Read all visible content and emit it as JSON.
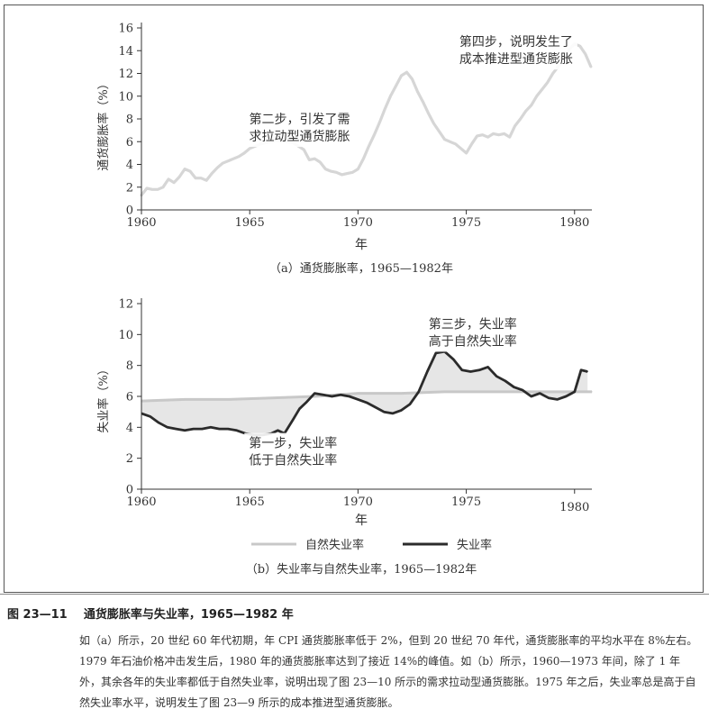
{
  "figure_label": "图 23—11",
  "figure_title": "通货膨胀率与失业率，1965—1982 年",
  "caption_text": "如（a）所示，20 世纪 60 年代初期，年 CPI 通货膨胀率低于 2%，但到 20 世纪 70 年代，通货膨胀率的平均水平在 8%左右。1979 年石油价格冲击发生后，1980 年的通货膨胀率达到了接近 14%的峰值。如（b）所示，1960—1973 年间，除了 1 年外，其余各年的失业率都低于自然失业率，说明出现了图 23—10 所示的需求拉动型通货膨胀。1975 年之后，失业率总是高于自然失业率水平，说明发生了图 23—9 所示的成本推进型通货膨胀。",
  "colors": {
    "inflation_line": "#d6d6d6",
    "unemployment_line": "#2b2b2b",
    "natural_line": "#c8c8c8",
    "fill": "#e6e6e6",
    "axis": "#333333"
  },
  "chart_data": [
    {
      "type": "line",
      "title": "",
      "subtitle": "（a）通货膨胀率，1965—1982年",
      "xlabel": "年",
      "ylabel": "通货膨胀率（%）",
      "xlim": [
        1960,
        1980.8
      ],
      "ylim": [
        0,
        16
      ],
      "xticks": [
        1960,
        1965,
        1970,
        1975,
        1980
      ],
      "yticks": [
        0,
        2,
        4,
        6,
        8,
        10,
        12,
        14,
        16
      ],
      "series": [
        {
          "name": "",
          "x": [
            1960,
            1960.25,
            1960.5,
            1960.75,
            1961,
            1961.25,
            1961.5,
            1961.75,
            1962,
            1962.25,
            1962.5,
            1962.75,
            1963,
            1963.25,
            1963.5,
            1963.75,
            1964,
            1964.25,
            1964.5,
            1964.75,
            1965,
            1965.25,
            1965.5,
            1965.75,
            1966,
            1966.25,
            1966.5,
            1966.75,
            1967,
            1967.25,
            1967.5,
            1967.75,
            1968,
            1968.25,
            1968.5,
            1968.75,
            1969,
            1969.25,
            1969.5,
            1969.75,
            1970,
            1970.25,
            1970.5,
            1970.75,
            1971,
            1971.25,
            1971.5,
            1971.75,
            1972,
            1972.25,
            1972.5,
            1972.75,
            1973,
            1973.25,
            1973.5,
            1973.75,
            1974,
            1974.25,
            1974.5,
            1974.75,
            1975,
            1975.25,
            1975.5,
            1975.75,
            1976,
            1976.25,
            1976.5,
            1976.75,
            1977,
            1977.25,
            1977.5,
            1977.75,
            1978,
            1978.25,
            1978.5,
            1978.75,
            1979,
            1979.25,
            1979.5,
            1979.75,
            1980,
            1980.25,
            1980.5,
            1980.75
          ],
          "values": [
            1.3,
            1.9,
            1.8,
            1.8,
            2.0,
            2.7,
            2.4,
            2.9,
            3.6,
            3.4,
            2.8,
            2.8,
            2.6,
            3.2,
            3.7,
            4.1,
            4.3,
            4.5,
            4.7,
            5.0,
            5.4,
            5.6,
            5.8,
            5.9,
            6.0,
            6.1,
            6.1,
            6.0,
            5.9,
            5.6,
            5.3,
            4.4,
            4.5,
            4.2,
            3.6,
            3.4,
            3.3,
            3.1,
            3.2,
            3.3,
            3.6,
            4.5,
            5.6,
            6.6,
            7.7,
            8.9,
            10.0,
            10.9,
            11.8,
            12.1,
            11.5,
            10.4,
            9.5,
            8.5,
            7.6,
            6.9,
            6.2,
            6.0,
            5.8,
            5.4,
            5.0,
            5.8,
            6.5,
            6.6,
            6.4,
            6.7,
            6.6,
            6.7,
            6.4,
            7.4,
            8.0,
            8.7,
            9.2,
            10.0,
            10.6,
            11.2,
            12.0,
            12.6,
            13.3,
            14.1,
            14.6,
            14.4,
            13.7,
            12.6
          ]
        }
      ],
      "annotations": [
        {
          "text": "第二步，引发了需求拉动型通货膨胀",
          "line1": "第二步，引发了需",
          "line2": "求拉动型通货膨胀",
          "x": 1967.3,
          "y": 7.6
        },
        {
          "text": "第四步，说明发生了成本推进型通货膨胀",
          "line1": "第四步，说明发生了",
          "line2": "成本推进型通货膨胀",
          "x": 1977.3,
          "y": 14.4
        }
      ]
    },
    {
      "type": "line",
      "title": "",
      "subtitle": "（b）失业率与自然失业率，1965—1982年",
      "xlabel": "年",
      "ylabel": "失业率（%）",
      "xlim": [
        1960,
        1980.8
      ],
      "ylim": [
        0,
        12
      ],
      "xticks": [
        1960,
        1965,
        1970,
        1975,
        1980
      ],
      "yticks": [
        0,
        2,
        4,
        6,
        8,
        10,
        12
      ],
      "legend_position": "bottom",
      "series": [
        {
          "name": "自然失业率",
          "x": [
            1960,
            1962,
            1964,
            1966,
            1968,
            1970,
            1972,
            1974,
            1976,
            1978,
            1980,
            1980.8
          ],
          "values": [
            5.7,
            5.8,
            5.8,
            5.9,
            6.0,
            6.2,
            6.2,
            6.3,
            6.3,
            6.3,
            6.3,
            6.3
          ]
        },
        {
          "name": "失业率",
          "x": [
            1960,
            1960.4,
            1960.8,
            1961.2,
            1961.6,
            1962,
            1962.4,
            1962.8,
            1963.2,
            1963.6,
            1964,
            1964.4,
            1964.8,
            1965.2,
            1965.6,
            1966,
            1966.3,
            1966.6,
            1967,
            1967.3,
            1967.6,
            1968,
            1968.4,
            1968.8,
            1969.2,
            1969.6,
            1970,
            1970.4,
            1970.8,
            1971.2,
            1971.6,
            1972,
            1972.4,
            1972.8,
            1973.2,
            1973.6,
            1974,
            1974.4,
            1974.8,
            1975.2,
            1975.6,
            1976,
            1976.4,
            1976.8,
            1977.2,
            1977.6,
            1978,
            1978.4,
            1978.8,
            1979.2,
            1979.6,
            1980,
            1980.3,
            1980.6
          ],
          "values": [
            4.9,
            4.7,
            4.3,
            4.0,
            3.9,
            3.8,
            3.9,
            3.9,
            4.0,
            3.9,
            3.9,
            3.8,
            3.6,
            3.5,
            3.5,
            3.6,
            3.8,
            3.6,
            4.5,
            5.2,
            5.6,
            6.2,
            6.1,
            6.0,
            6.1,
            6.0,
            5.8,
            5.6,
            5.3,
            5.0,
            4.9,
            5.1,
            5.5,
            6.3,
            7.6,
            8.8,
            8.9,
            8.4,
            7.7,
            7.6,
            7.7,
            7.9,
            7.3,
            7.0,
            6.6,
            6.4,
            6.0,
            6.2,
            5.9,
            5.8,
            6.0,
            6.3,
            7.7,
            7.6
          ]
        }
      ],
      "annotations": [
        {
          "text": "第三步，失业率高于自然失业率",
          "line1": "第三步，失业率",
          "line2": "高于自然失业率",
          "x": 1975.3,
          "y": 10.4
        },
        {
          "text": "第一步，失业率低于自然失业率",
          "line1": "第一步，失业率",
          "line2": "低于自然失业率",
          "x": 1967.0,
          "y": 2.7
        }
      ]
    }
  ]
}
